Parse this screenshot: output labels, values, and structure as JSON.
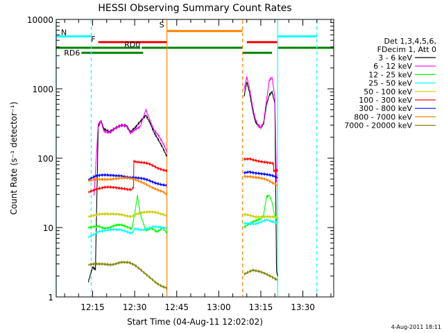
{
  "chart_data": {
    "type": "line",
    "title": "HESSI Observing Summary Count Rates",
    "xlabel": "Start Time (04-Aug-11 12:02:02)",
    "ylabel": "Count Rate (s⁻¹ detector⁻¹)",
    "timestamp": "4-Aug-2011 18:11",
    "x_unit": "minutes after 12:02:02",
    "xlim": [
      0,
      99
    ],
    "ylim": [
      1,
      10000
    ],
    "yscale": "log",
    "x_ticks": [
      {
        "label": "12:15",
        "value": 13
      },
      {
        "label": "12:30",
        "value": 28
      },
      {
        "label": "12:45",
        "value": 43
      },
      {
        "label": "13:00",
        "value": 58
      },
      {
        "label": "13:15",
        "value": 73
      },
      {
        "label": "13:30",
        "value": 88
      }
    ],
    "y_ticks": [
      {
        "label": "1",
        "value": 1
      },
      {
        "label": "10",
        "value": 10
      },
      {
        "label": "100",
        "value": 100
      },
      {
        "label": "1000",
        "value": 1000
      },
      {
        "label": "10000",
        "value": 10000
      }
    ],
    "legend": {
      "position": "right",
      "header": [
        "Det 1,3,4,5,6,",
        "FDecim 1, Att 0"
      ],
      "entries": [
        {
          "label": "3 - 6 keV",
          "color": "#000000"
        },
        {
          "label": "6 - 12 keV",
          "color": "#ff00ff"
        },
        {
          "label": "12 - 25 keV",
          "color": "#00ff00"
        },
        {
          "label": "25 - 50 keV",
          "color": "#00ffff"
        },
        {
          "label": "50 - 100 keV",
          "color": "#cccc00"
        },
        {
          "label": "100 - 300 keV",
          "color": "#ff0000"
        },
        {
          "label": "300 - 800 keV",
          "color": "#0000ff"
        },
        {
          "label": "800 - 7000 keV",
          "color": "#ff8000"
        },
        {
          "label": "7000 - 20000 keV",
          "color": "#808000"
        }
      ]
    },
    "segments": [
      [
        11.5,
        39.5
      ],
      [
        67,
        79
      ]
    ],
    "series": [
      {
        "name": "3 - 6 keV",
        "color": "#000000",
        "data": [
          [
            [
              11.5,
              1.6
            ],
            [
              13,
              2.6
            ],
            [
              14,
              2.4
            ],
            [
              15,
              280
            ],
            [
              16,
              350
            ],
            [
              17,
              270
            ],
            [
              19,
              250
            ],
            [
              21,
              280
            ],
            [
              23,
              300
            ],
            [
              25,
              290
            ],
            [
              26.5,
              230
            ],
            [
              28,
              260
            ],
            [
              30,
              330
            ],
            [
              32,
              420
            ],
            [
              33.5,
              330
            ],
            [
              35,
              240
            ],
            [
              36.5,
              190
            ],
            [
              38,
              145
            ],
            [
              39.5,
              105
            ]
          ],
          [
            [
              67,
              800
            ],
            [
              68,
              1300
            ],
            [
              69,
              900
            ],
            [
              70,
              520
            ],
            [
              71,
              340
            ],
            [
              72,
              290
            ],
            [
              73,
              270
            ],
            [
              74,
              300
            ],
            [
              75,
              560
            ],
            [
              76,
              780
            ],
            [
              77,
              880
            ],
            [
              78,
              620
            ],
            [
              78.6,
              2.5
            ],
            [
              79,
              2
            ]
          ]
        ]
      },
      {
        "name": "6 - 12 keV",
        "color": "#ff00ff",
        "data": [
          [
            [
              13.5,
              28
            ],
            [
              15,
              320
            ],
            [
              16,
              350
            ],
            [
              17,
              255
            ],
            [
              19,
              240
            ],
            [
              21,
              270
            ],
            [
              23,
              290
            ],
            [
              25,
              280
            ],
            [
              26.5,
              220
            ],
            [
              28,
              250
            ],
            [
              30,
              290
            ],
            [
              32,
              520
            ],
            [
              33.5,
              360
            ],
            [
              35,
              260
            ],
            [
              36.5,
              215
            ],
            [
              38,
              165
            ],
            [
              39.5,
              120
            ]
          ],
          [
            [
              67,
              1000
            ],
            [
              68,
              1500
            ],
            [
              69,
              1000
            ],
            [
              70,
              560
            ],
            [
              71,
              360
            ],
            [
              72,
              290
            ],
            [
              73,
              260
            ],
            [
              74,
              320
            ],
            [
              75,
              650
            ],
            [
              76,
              1300
            ],
            [
              77,
              1500
            ],
            [
              78,
              760
            ],
            [
              78.6,
              45
            ]
          ]
        ]
      },
      {
        "name": "12 - 25 keV",
        "color": "#00ff00",
        "data": [
          [
            [
              11.5,
              10
            ],
            [
              13,
              10.5
            ],
            [
              15,
              11
            ],
            [
              17,
              10
            ],
            [
              19,
              10
            ],
            [
              21,
              10.5
            ],
            [
              23,
              10.5
            ],
            [
              25,
              10
            ],
            [
              27,
              9.5
            ],
            [
              28,
              16
            ],
            [
              29,
              30
            ],
            [
              30,
              16
            ],
            [
              32,
              9.5
            ],
            [
              34,
              10
            ],
            [
              36,
              8.5
            ],
            [
              38,
              9.5
            ],
            [
              39.5,
              8
            ]
          ],
          [
            [
              67,
              10
            ],
            [
              69,
              11
            ],
            [
              71,
              12
            ],
            [
              73,
              13
            ],
            [
              74,
              15
            ],
            [
              75,
              28
            ],
            [
              76,
              30
            ],
            [
              77,
              24
            ],
            [
              78,
              15
            ],
            [
              79,
              13
            ]
          ]
        ]
      },
      {
        "name": "25 - 50 keV",
        "color": "#00ffff",
        "data": [
          [
            [
              11.5,
              7.5
            ],
            [
              15,
              9
            ],
            [
              19,
              9
            ],
            [
              23,
              9
            ],
            [
              27,
              8.5
            ],
            [
              28,
              10
            ],
            [
              31,
              9.5
            ],
            [
              35,
              10
            ],
            [
              39.5,
              9.5
            ]
          ],
          [
            [
              67,
              11
            ],
            [
              71,
              11
            ],
            [
              75,
              13.5
            ],
            [
              79,
              12
            ]
          ]
        ]
      },
      {
        "name": "50 - 100 keV",
        "color": "#cccc00",
        "data": [
          [
            [
              11.5,
              15
            ],
            [
              15,
              15.5
            ],
            [
              19,
              15
            ],
            [
              23,
              15.5
            ],
            [
              27,
              15
            ],
            [
              28,
              16
            ],
            [
              31,
              16.5
            ],
            [
              35,
              16
            ],
            [
              39.5,
              15
            ]
          ],
          [
            [
              67,
              15
            ],
            [
              71,
              14.5
            ],
            [
              75,
              15
            ],
            [
              79,
              14
            ]
          ]
        ]
      },
      {
        "name": "100 - 300 keV",
        "color": "#ff0000",
        "data": [
          [
            [
              11.5,
              33
            ],
            [
              13,
              34
            ],
            [
              15,
              35
            ],
            [
              18,
              37
            ],
            [
              21,
              38
            ],
            [
              24,
              38
            ],
            [
              27,
              36
            ],
            [
              27.6,
              36
            ],
            [
              27.7,
              95
            ],
            [
              30,
              85
            ],
            [
              33,
              80
            ],
            [
              36,
              72
            ],
            [
              39.5,
              68
            ]
          ],
          [
            [
              67,
              95
            ],
            [
              69,
              100
            ],
            [
              72,
              95
            ],
            [
              75,
              88
            ],
            [
              77,
              83
            ],
            [
              77.5,
              82
            ],
            [
              77.6,
              65
            ],
            [
              79,
              64
            ]
          ]
        ]
      },
      {
        "name": "300 - 800 keV",
        "color": "#0000ff",
        "data": [
          [
            [
              11.5,
              48
            ],
            [
              14,
              53
            ],
            [
              17,
              56
            ],
            [
              20,
              58
            ],
            [
              23,
              58
            ],
            [
              26,
              53
            ],
            [
              29,
              50
            ],
            [
              32,
              48
            ],
            [
              35,
              45
            ],
            [
              39.5,
              42
            ]
          ],
          [
            [
              67,
              63
            ],
            [
              69,
              66
            ],
            [
              72,
              62
            ],
            [
              75,
              57
            ],
            [
              77,
              54
            ],
            [
              79,
              51
            ]
          ]
        ]
      },
      {
        "name": "800 - 7000 keV",
        "color": "#ff8000",
        "data": [
          [
            [
              11.5,
              45
            ],
            [
              14,
              48
            ],
            [
              17,
              50
            ],
            [
              20,
              52
            ],
            [
              23,
              53
            ],
            [
              26,
              50
            ],
            [
              29,
              46
            ],
            [
              32,
              42
            ],
            [
              35,
              38
            ],
            [
              38,
              34
            ],
            [
              39.5,
              30
            ]
          ],
          [
            [
              67,
              57
            ],
            [
              69,
              56
            ],
            [
              72,
              52
            ],
            [
              75,
              47
            ],
            [
              77,
              43
            ],
            [
              79,
              40
            ]
          ]
        ]
      },
      {
        "name": "7000 - 20000 keV",
        "color": "#808000",
        "data": [
          [
            [
              11.5,
              2.8
            ],
            [
              14,
              3
            ],
            [
              17,
              3.1
            ],
            [
              20,
              3
            ],
            [
              23,
              3.1
            ],
            [
              26,
              3
            ],
            [
              28,
              2.8
            ],
            [
              30,
              2.5
            ],
            [
              32,
              2.2
            ],
            [
              34,
              1.9
            ],
            [
              36,
              1.6
            ],
            [
              38,
              1.4
            ],
            [
              39.5,
              1.3
            ]
          ],
          [
            [
              67,
              2.2
            ],
            [
              70,
              2.4
            ],
            [
              73,
              2.2
            ],
            [
              76,
              2
            ],
            [
              79,
              1.8
            ]
          ]
        ]
      }
    ],
    "state_bars": [
      {
        "label": "N",
        "color": "#00ffff",
        "y": 5700,
        "x_ranges": [
          [
            0,
            12.5
          ],
          [
            79,
            93
          ]
        ]
      },
      {
        "label": "S",
        "color": "#ff8000",
        "y": 6800,
        "x_ranges": [
          [
            39.5,
            66.5
          ]
        ]
      },
      {
        "label": "F",
        "color": "#ff0000",
        "y": 4700,
        "x_ranges": [
          [
            15,
            39.5
          ],
          [
            68,
            79
          ]
        ]
      },
      {
        "label": "RD0",
        "color": "#008000",
        "y": 3900,
        "x_ranges": [
          [
            0,
            30
          ],
          [
            30.5,
            66.5
          ],
          [
            79,
            99
          ]
        ]
      },
      {
        "label": "RD6",
        "color": "#008000",
        "y": 3300,
        "x_ranges": [
          [
            9,
            31
          ],
          [
            66.5,
            77
          ]
        ]
      }
    ],
    "state_transitions": [
      {
        "x": 0,
        "color": "#00ffff",
        "style": "solid"
      },
      {
        "x": 12.5,
        "color": "#00ffff",
        "style": "dashed"
      },
      {
        "x": 39.5,
        "color": "#ff8000",
        "style": "solid"
      },
      {
        "x": 66.5,
        "color": "#ff8000",
        "style": "dashed"
      },
      {
        "x": 79,
        "color": "#00ffff",
        "style": "solid"
      },
      {
        "x": 93,
        "color": "#00ffff",
        "style": "dashed"
      }
    ]
  }
}
